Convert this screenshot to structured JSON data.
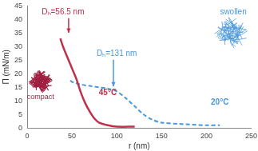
{
  "chart_data": {
    "type": "line",
    "x_label": "r (nm)",
    "y_label": "Π (mN/m)",
    "xlim": [
      0,
      250
    ],
    "xticks": [
      0,
      50,
      100,
      150,
      200,
      250
    ],
    "ylim": [
      0,
      45
    ],
    "yticks": [
      0,
      5,
      10,
      15,
      20,
      25,
      30,
      35,
      40,
      45
    ],
    "grid": false,
    "series": [
      {
        "name": "45°C",
        "color": "#c0304a",
        "line_style": "solid",
        "marker": "none",
        "x": [
          37,
          40,
          45,
          50,
          55,
          60,
          65,
          70,
          75,
          80,
          90,
          100,
          120
        ],
        "values": [
          33,
          30,
          26,
          22,
          18,
          13,
          9,
          6,
          3.5,
          2,
          1,
          0.5,
          0.5
        ]
      },
      {
        "name": "20°C",
        "color": "#4a98dc",
        "line_style": "dashed",
        "marker": "none",
        "x": [
          48,
          50,
          55,
          60,
          70,
          80,
          90,
          100,
          110,
          120,
          130,
          140,
          150,
          170,
          200,
          215
        ],
        "values": [
          17.5,
          17,
          16.5,
          16,
          15.5,
          15,
          14.5,
          13.5,
          11,
          8,
          5,
          3,
          2,
          1.5,
          1,
          1
        ]
      }
    ],
    "annotations": [
      {
        "text": "Dₕ=56.5 nm",
        "color": "#c0304a"
      },
      {
        "text": "Dₕ=131 nm",
        "color": "#4a98dc"
      },
      {
        "text": "compact",
        "color": "#a02040"
      },
      {
        "text": "swollen",
        "color": "#4a98dc"
      },
      {
        "text": "45°C",
        "color": "#c0304a"
      },
      {
        "text": "20°C",
        "color": "#4a98dc"
      }
    ]
  }
}
